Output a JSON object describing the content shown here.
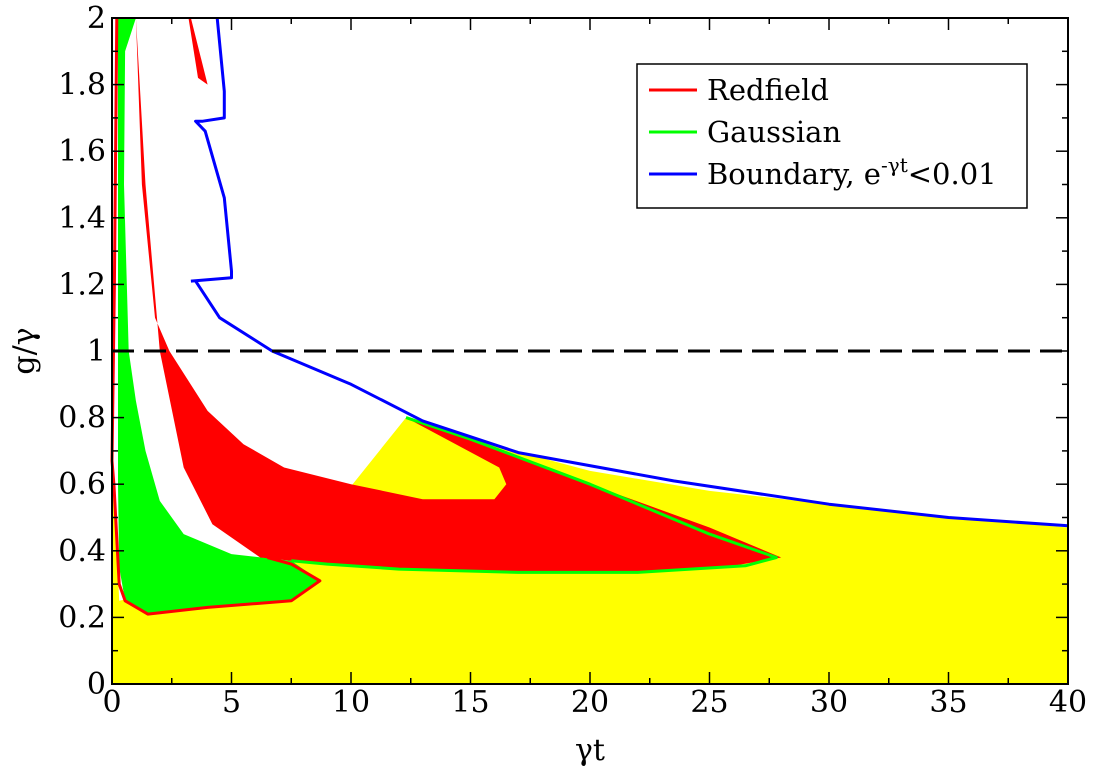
{
  "chart_data": {
    "type": "line",
    "xlabel": "γt",
    "ylabel": "g/γ",
    "xlim": [
      0,
      40
    ],
    "ylim": [
      0,
      2
    ],
    "xticks": [
      "0",
      "5",
      "10",
      "15",
      "20",
      "25",
      "30",
      "35",
      "40"
    ],
    "yticks": [
      "0",
      "0.2",
      "0.4",
      "0.6",
      "0.8",
      "1",
      "1.2",
      "1.4",
      "1.6",
      "1.8",
      "2"
    ],
    "grid": false,
    "legend": {
      "placement": "top-right",
      "entries": [
        {
          "label": "Redfield",
          "color": "#ff0000"
        },
        {
          "label": "Gaussian",
          "color": "#00ff00"
        },
        {
          "label_base": "Boundary, e",
          "label_sup": "-γt",
          "label_tail": "<0.01",
          "color": "#0000ff"
        }
      ]
    },
    "regions": [
      {
        "color": "#ffff00",
        "points": [
          [
            0,
            0
          ],
          [
            40,
            0
          ],
          [
            40,
            0.47
          ],
          [
            35,
            0.5
          ],
          [
            30,
            0.54
          ],
          [
            25,
            0.58
          ],
          [
            20,
            0.64
          ],
          [
            15,
            0.735
          ],
          [
            12.3,
            0.8
          ],
          [
            12.3,
            0.8
          ],
          [
            7.5,
            0.37
          ],
          [
            7.5,
            0.37
          ],
          [
            0.3,
            0.25
          ],
          [
            0.08,
            0.6
          ],
          [
            0,
            0.6
          ]
        ]
      },
      {
        "color": "#00ff00",
        "points": [
          [
            0.25,
            2
          ],
          [
            1.0,
            2
          ],
          [
            0.55,
            1.9
          ],
          [
            0.5,
            1.5
          ],
          [
            0.7,
            1.0
          ],
          [
            1.0,
            0.85
          ],
          [
            1.4,
            0.7
          ],
          [
            2.0,
            0.55
          ],
          [
            3.0,
            0.45
          ],
          [
            5.0,
            0.39
          ],
          [
            7.5,
            0.37
          ],
          [
            8.7,
            0.31
          ],
          [
            7.5,
            0.25
          ],
          [
            4,
            0.23
          ],
          [
            1.5,
            0.21
          ],
          [
            0.55,
            0.25
          ],
          [
            0.3,
            0.35
          ],
          [
            0.25,
            0.6
          ]
        ]
      },
      {
        "color": "#ff0000",
        "points": [
          [
            1.0,
            2
          ],
          [
            1.25,
            1.5
          ],
          [
            1.8,
            1.1
          ],
          [
            2.4,
            1.0
          ],
          [
            4.0,
            0.82
          ],
          [
            5.5,
            0.72
          ],
          [
            7.2,
            0.65
          ],
          [
            10,
            0.6
          ],
          [
            13,
            0.555
          ],
          [
            16,
            0.555
          ],
          [
            16.5,
            0.6
          ],
          [
            16.2,
            0.65
          ],
          [
            12.3,
            0.8
          ],
          [
            15,
            0.735
          ],
          [
            20,
            0.6
          ],
          [
            25,
            0.47
          ],
          [
            28,
            0.38
          ],
          [
            26,
            0.355
          ],
          [
            22,
            0.335
          ],
          [
            17,
            0.335
          ],
          [
            12,
            0.345
          ],
          [
            9,
            0.36
          ],
          [
            7.5,
            0.37
          ],
          [
            6.2,
            0.38
          ],
          [
            4.2,
            0.48
          ],
          [
            3.0,
            0.65
          ],
          [
            2.0,
            1.0
          ],
          [
            1.4,
            1.5
          ],
          [
            1.0,
            2
          ]
        ]
      },
      {
        "color": "#ff0000",
        "points": [
          [
            3.2,
            2
          ],
          [
            3.6,
            1.82
          ],
          [
            4.0,
            1.8
          ],
          [
            3.3,
            2
          ]
        ]
      }
    ],
    "series": [
      {
        "name": "Redfield",
        "color": "#ff0000",
        "x": [
          0.2,
          0.1,
          0.0,
          0.08,
          0.3,
          0.55,
          1.5,
          4,
          7.5,
          8.7,
          7.5,
          6.5
        ],
        "y": [
          2.0,
          1.2,
          0.67,
          0.6,
          0.3,
          0.25,
          0.21,
          0.23,
          0.25,
          0.31,
          0.36,
          0.38
        ]
      },
      {
        "name": "Gaussian",
        "color": "#00ff00",
        "x": [
          12.3,
          15,
          20,
          25,
          27.8,
          26.5,
          22,
          17,
          12,
          9,
          7.5
        ],
        "y": [
          0.8,
          0.735,
          0.6,
          0.45,
          0.38,
          0.355,
          0.335,
          0.335,
          0.345,
          0.36,
          0.37
        ]
      },
      {
        "name": "Boundary, e-γt<0.01",
        "color": "#0000ff",
        "x": [
          3.5,
          4.5,
          6.7,
          10,
          13,
          17,
          23.5,
          30,
          35,
          40
        ],
        "y": [
          1.21,
          1.1,
          1.0,
          0.9,
          0.79,
          0.695,
          0.61,
          0.54,
          0.5,
          0.475
        ]
      },
      {
        "name": "boundary-upper",
        "color": "#0000ff",
        "x": [
          3.3,
          5.0,
          5.0,
          4.7,
          3.9,
          3.5,
          3.8,
          4.7,
          4.7,
          4.4,
          4.4
        ],
        "y": [
          1.21,
          1.22,
          1.24,
          1.46,
          1.66,
          1.69,
          1.69,
          1.7,
          1.78,
          2.0,
          2.0
        ]
      },
      {
        "name": "reference-line",
        "color": "#000000",
        "dashed": true,
        "x": [
          0,
          40
        ],
        "y": [
          1,
          1
        ]
      }
    ]
  }
}
